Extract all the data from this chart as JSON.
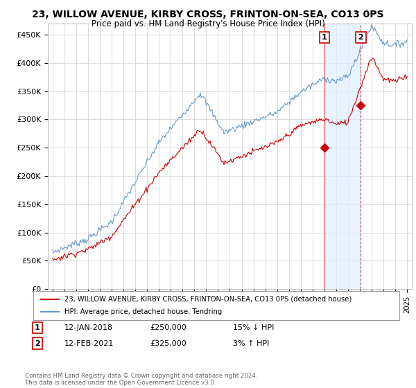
{
  "title": "23, WILLOW AVENUE, KIRBY CROSS, FRINTON-ON-SEA, CO13 0PS",
  "subtitle": "Price paid vs. HM Land Registry's House Price Index (HPI)",
  "ylabel_ticks": [
    "£0",
    "£50K",
    "£100K",
    "£150K",
    "£200K",
    "£250K",
    "£300K",
    "£350K",
    "£400K",
    "£450K"
  ],
  "ytick_vals": [
    0,
    50000,
    100000,
    150000,
    200000,
    250000,
    300000,
    350000,
    400000,
    450000
  ],
  "ylim": [
    0,
    470000
  ],
  "hpi_color": "#6699cc",
  "price_color": "#cc0000",
  "vline_color": "#cc0000",
  "shaded_color": "#ddeeff",
  "legend_line1": "23, WILLOW AVENUE, KIRBY CROSS, FRINTON-ON-SEA, CO13 0PS (detached house)",
  "legend_line2": "HPI: Average price, detached house, Tendring",
  "ann1_date": "12-JAN-2018",
  "ann1_price": "£250,000",
  "ann1_hpi": "15% ↓ HPI",
  "ann2_date": "12-FEB-2021",
  "ann2_price": "£325,000",
  "ann2_hpi": "3% ↑ HPI",
  "footer": "Contains HM Land Registry data © Crown copyright and database right 2024.\nThis data is licensed under the Open Government Licence v3.0.",
  "background_color": "#ffffff",
  "year_start": 1995,
  "year_end": 2025,
  "sale1_year": 2018.04,
  "sale1_price": 250000,
  "sale2_year": 2021.12,
  "sale2_price": 325000
}
